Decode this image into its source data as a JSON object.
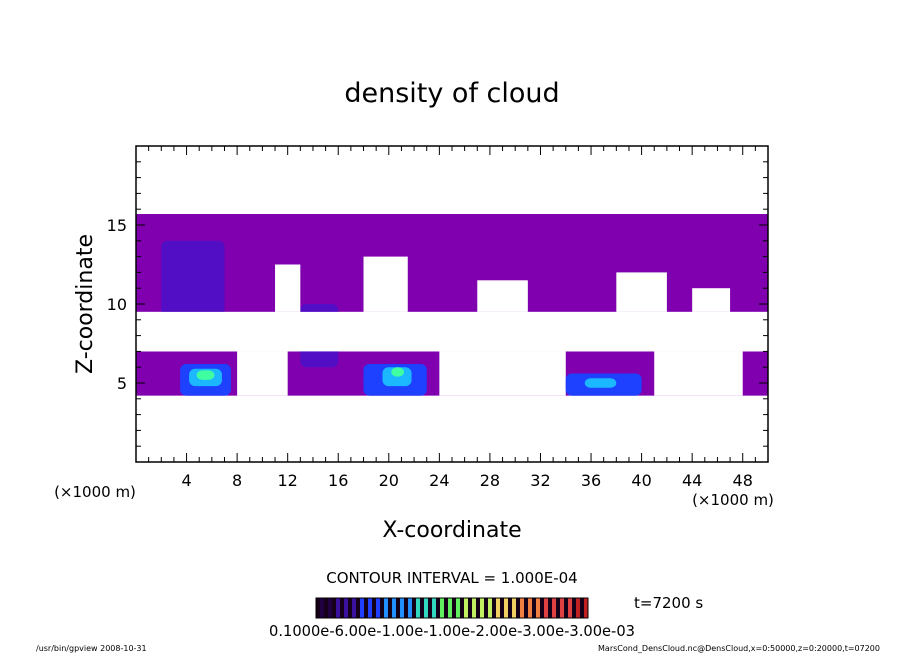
{
  "chart_data": {
    "type": "heatmap",
    "title": "density of cloud",
    "xlabel": "X-coordinate",
    "ylabel": "Z-coordinate",
    "x_unit_left": "(×1000 m)",
    "x_unit_right": "(×1000 m)",
    "xlim": [
      0,
      50
    ],
    "ylim": [
      0,
      20
    ],
    "x_ticks": [
      4,
      8,
      12,
      16,
      20,
      24,
      28,
      32,
      36,
      40,
      44,
      48
    ],
    "x_tick_labels": [
      "4",
      "8",
      "12",
      "16",
      "20",
      "24",
      "28",
      "32",
      "36",
      "40",
      "44",
      "48"
    ],
    "y_ticks": [
      5,
      10,
      15
    ],
    "y_tick_labels": [
      "5",
      "10",
      "15"
    ],
    "contour_interval_text": "CONTOUR INTERVAL = 1.000E-04",
    "time_label": "t=7200 s",
    "colorbar_labels_text": "0.1000e-6.00e-1.00e-1.00e-2.00e-3.00e-3.00e-03",
    "colors": {
      "background": "#8000b0",
      "low": "#4a10c8",
      "mid": "#1e40ff",
      "high": "#1cb8ff",
      "peak": "#40ffa0"
    },
    "regions": [
      {
        "x": [
          0,
          50
        ],
        "z": [
          9.5,
          15.7
        ],
        "level": "background"
      },
      {
        "x": [
          0,
          50
        ],
        "z": [
          4.2,
          7.0
        ],
        "level": "background"
      },
      {
        "x": [
          2,
          7
        ],
        "z": [
          9,
          14
        ],
        "level": "low"
      },
      {
        "x": [
          13,
          16
        ],
        "z": [
          6,
          10
        ],
        "level": "low"
      },
      {
        "x": [
          3.5,
          7.5
        ],
        "z": [
          4.2,
          6.2
        ],
        "level": "mid"
      },
      {
        "x": [
          18,
          23
        ],
        "z": [
          4.2,
          6.2
        ],
        "level": "mid"
      },
      {
        "x": [
          34,
          40
        ],
        "z": [
          4.2,
          5.6
        ],
        "level": "mid"
      },
      {
        "x": [
          4.2,
          6.8
        ],
        "z": [
          4.8,
          5.9
        ],
        "level": "high"
      },
      {
        "x": [
          19.5,
          21.8
        ],
        "z": [
          4.8,
          6.0
        ],
        "level": "high"
      },
      {
        "x": [
          35.5,
          38
        ],
        "z": [
          4.7,
          5.3
        ],
        "level": "high"
      },
      {
        "x": [
          4.8,
          6.2
        ],
        "z": [
          5.2,
          5.8
        ],
        "level": "peak"
      },
      {
        "x": [
          20.2,
          21.2
        ],
        "z": [
          5.4,
          6.0
        ],
        "level": "peak"
      }
    ]
  },
  "footer": {
    "left": "/usr/bin/gpview   2008-10-31",
    "right": "MarsCond_DensCloud.nc@DensCloud,x=0:50000,z=0:20000,t=07200"
  }
}
